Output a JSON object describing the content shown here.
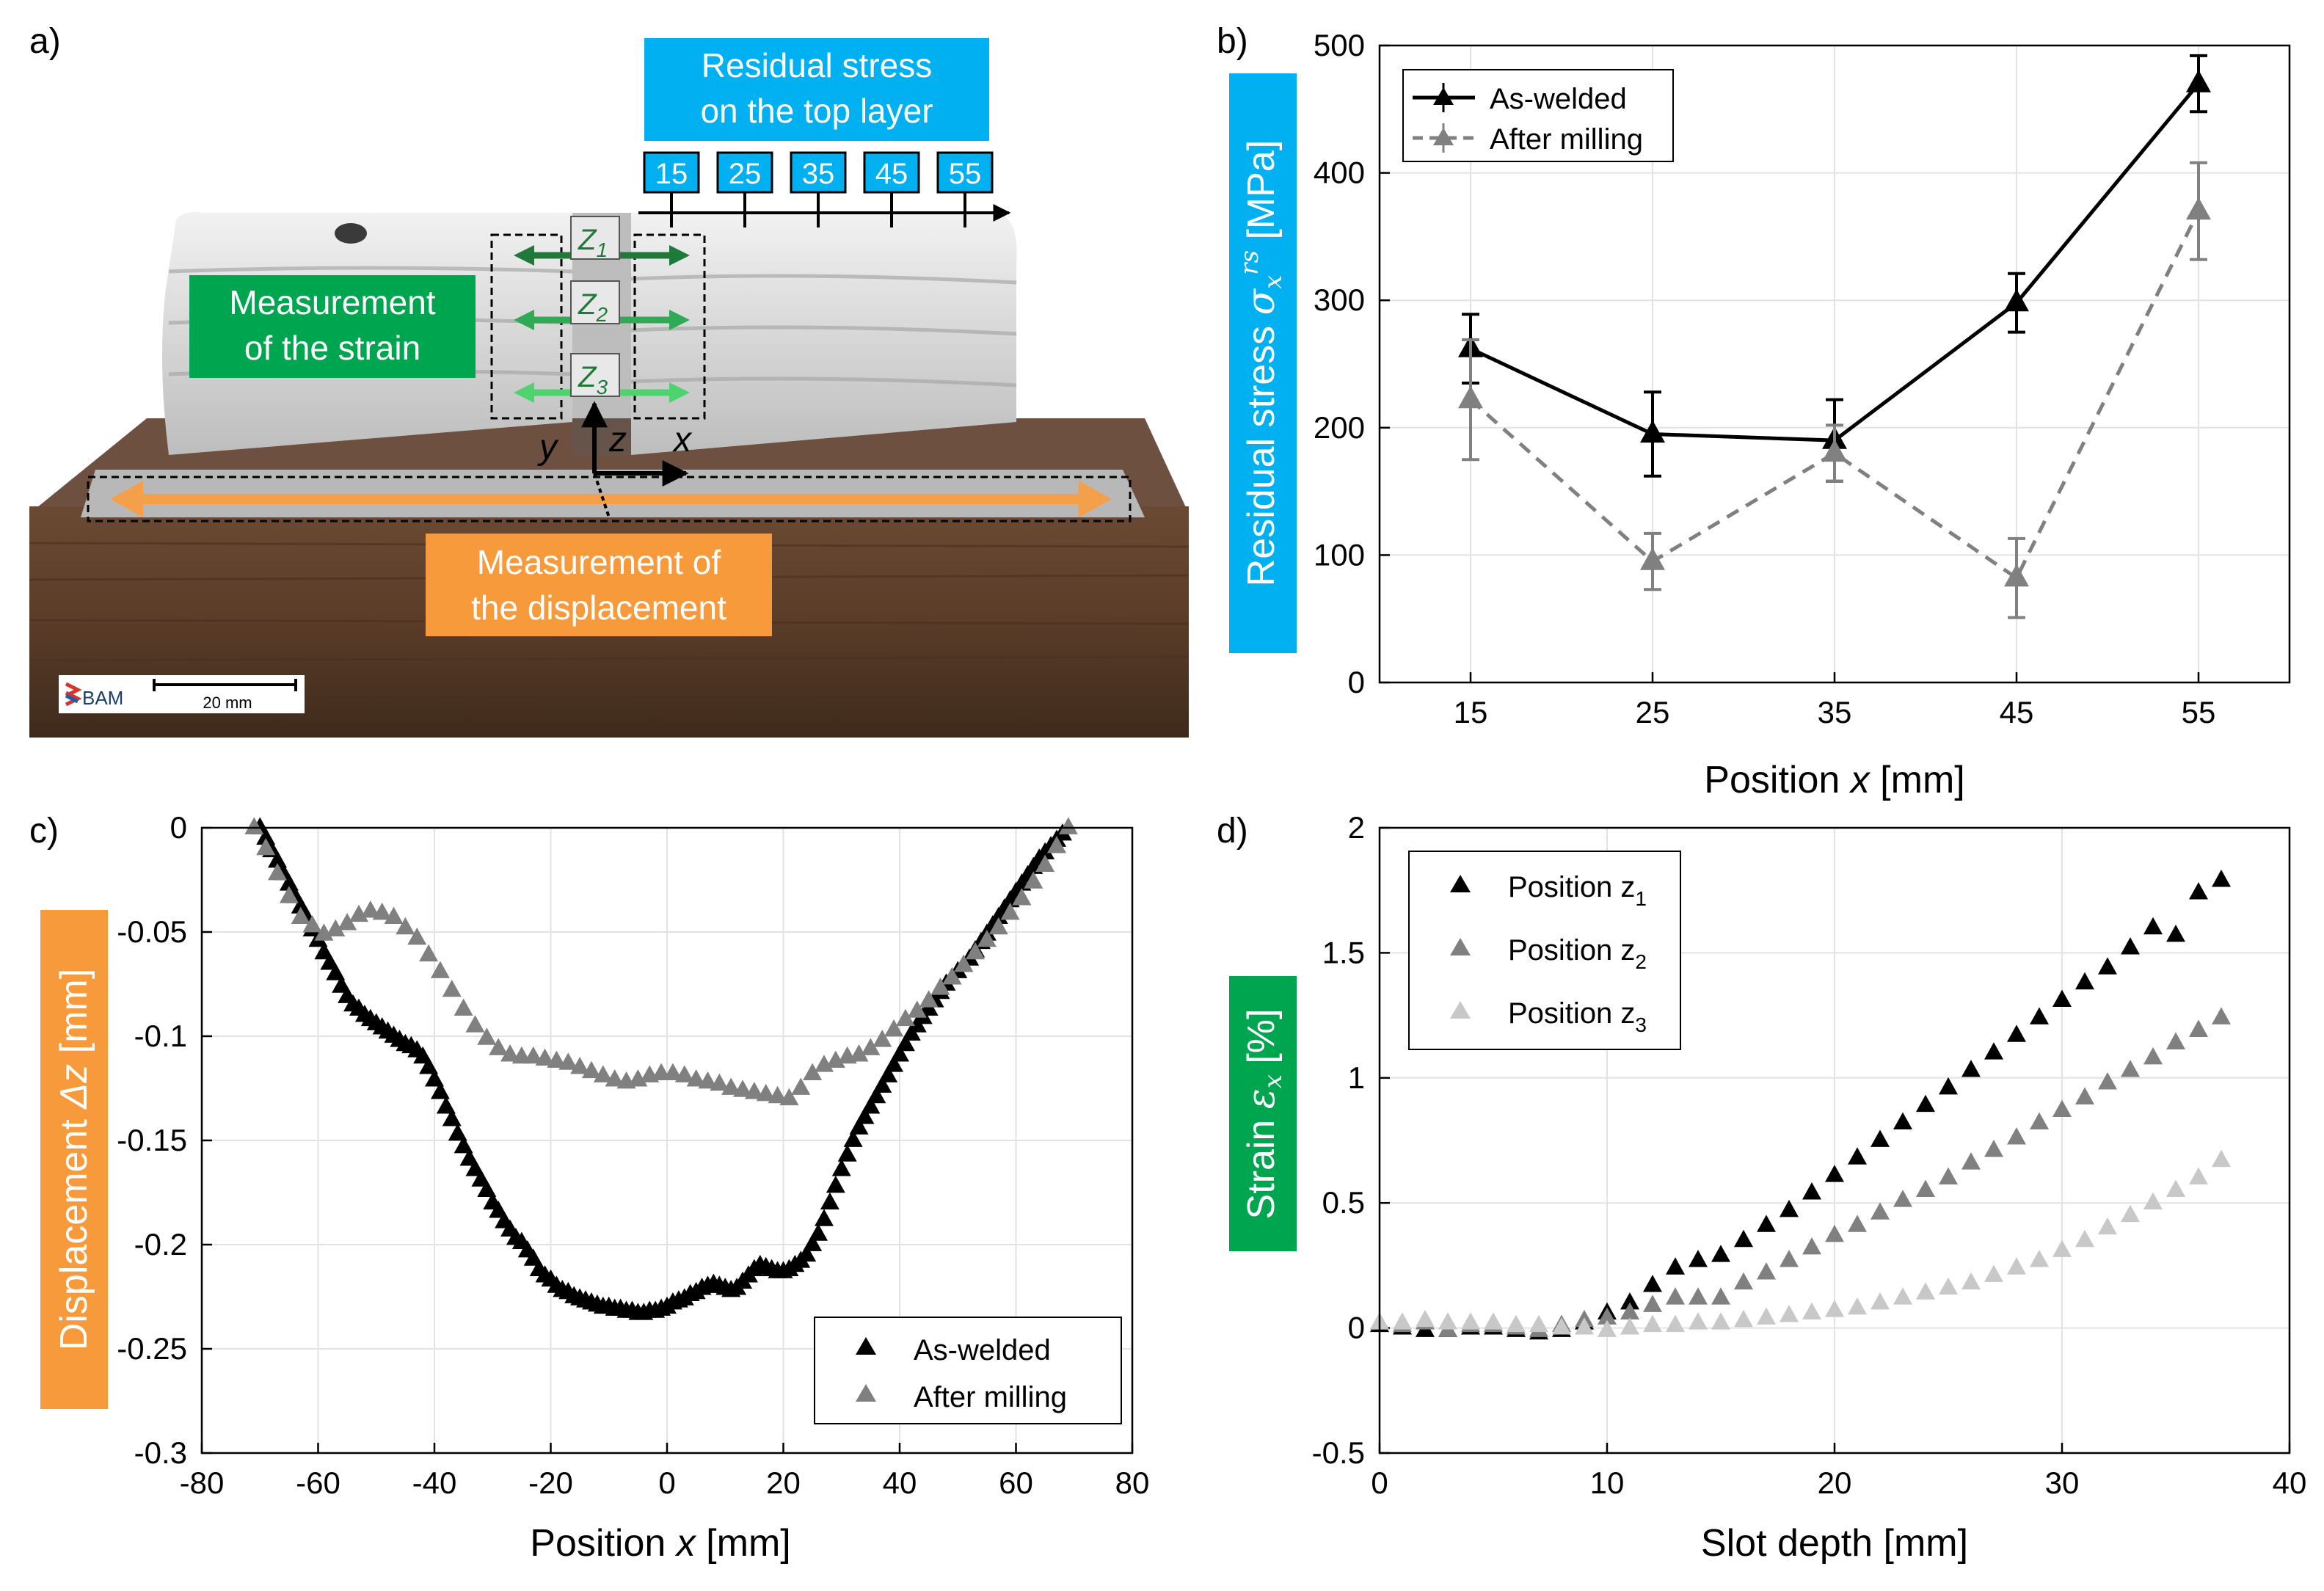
{
  "panels": {
    "a": "a)",
    "b": "b)",
    "c": "c)",
    "d": "d)"
  },
  "colors": {
    "as_welded": "#000000",
    "after_milling": "#808080",
    "z1": "#000000",
    "z2": "#808080",
    "z3": "#c8c8c8",
    "cyan_box": "#00b0f0",
    "green_box": "#00a550",
    "orange_box": "#f79a3c",
    "arrow_orange": "#f4a04a",
    "arrow_green_dark": "#1f7a3a",
    "arrow_green_mid": "#2faa55",
    "arrow_green_light": "#4fd36e",
    "wood": "#5a3c28",
    "metal": "#d9d9d9"
  },
  "photo": {
    "residual_title_line1": "Residual stress",
    "residual_title_line2": "on the top layer",
    "positions": [
      "15",
      "25",
      "35",
      "45",
      "55"
    ],
    "strain_label_line1": "Measurement",
    "strain_label_line2": "of the strain",
    "disp_label_line1": "Measurement of",
    "disp_label_line2": "the displacement",
    "z_labels": [
      "Z",
      "Z",
      "Z"
    ],
    "z_subs": [
      "1",
      "2",
      "3"
    ],
    "axis_y": "y",
    "axis_z": "z",
    "axis_x": "x",
    "scale_logo": "BAM",
    "scale_text": "20 mm"
  },
  "chart_data": [
    {
      "id": "b",
      "type": "line",
      "ylabel_prefix": "Residual stress ",
      "ylabel_symbol": "σ",
      "ylabel_sub": "x",
      "ylabel_sup": "rs",
      "ylabel_unit": " [MPa]",
      "xlabel_prefix": "Position ",
      "xlabel_var": "x",
      "xlabel_unit": " [mm]",
      "xlim": [
        10,
        60
      ],
      "ylim": [
        0,
        500
      ],
      "xticks": [
        15,
        25,
        35,
        45,
        55
      ],
      "yticks": [
        0,
        100,
        200,
        300,
        400,
        500
      ],
      "grid": true,
      "legend": "top-left",
      "series": [
        {
          "name": "As-welded",
          "style": "solid",
          "color": "#000000",
          "x": [
            15,
            25,
            35,
            45,
            55
          ],
          "y": [
            262,
            195,
            190,
            298,
            470
          ],
          "err": [
            27,
            33,
            32,
            23,
            22
          ]
        },
        {
          "name": "After milling",
          "style": "dashed",
          "color": "#808080",
          "x": [
            15,
            25,
            35,
            45,
            55
          ],
          "y": [
            222,
            95,
            180,
            82,
            370
          ],
          "err": [
            47,
            22,
            22,
            31,
            38
          ]
        }
      ]
    },
    {
      "id": "c",
      "type": "scatter",
      "ylabel_prefix": "Displacement ",
      "ylabel_var": "Δz",
      "ylabel_unit": " [mm]",
      "xlabel_prefix": "Position ",
      "xlabel_var": "x",
      "xlabel_unit": " [mm]",
      "xlim": [
        -80,
        80
      ],
      "ylim": [
        -0.3,
        0
      ],
      "xticks": [
        -80,
        -60,
        -40,
        -20,
        0,
        20,
        40,
        60,
        80
      ],
      "yticks": [
        0,
        -0.05,
        -0.1,
        -0.15,
        -0.2,
        -0.25,
        -0.3
      ],
      "grid": true,
      "legend": "bottom-right",
      "series": [
        {
          "name": "As-welded",
          "color": "#000000",
          "x": [
            -70,
            -69,
            -68,
            -67,
            -66,
            -65,
            -64,
            -63,
            -62,
            -61,
            -60,
            -59,
            -58,
            -57,
            -56,
            -55,
            -54,
            -53,
            -52,
            -51,
            -50,
            -49,
            -48,
            -47,
            -46,
            -45,
            -44,
            -43,
            -42,
            -41,
            -40,
            -39,
            -38,
            -37,
            -36,
            -35,
            -34,
            -33,
            -32,
            -31,
            -30,
            -29,
            -28,
            -27,
            -26,
            -25,
            -24,
            -23,
            -22,
            -21,
            -20,
            -19,
            -18,
            -17,
            -16,
            -15,
            -14,
            -13,
            -12,
            -11,
            -10,
            -9,
            -8,
            -7,
            -6,
            -5,
            -4,
            -3,
            -2,
            -1,
            0,
            1,
            2,
            3,
            4,
            5,
            6,
            7,
            8,
            9,
            10,
            11,
            12,
            13,
            14,
            15,
            16,
            17,
            18,
            19,
            20,
            21,
            22,
            23,
            24,
            25,
            26,
            27,
            28,
            29,
            30,
            31,
            32,
            33,
            34,
            35,
            36,
            37,
            38,
            39,
            40,
            41,
            42,
            43,
            44,
            45,
            46,
            47,
            48,
            49,
            50,
            51,
            52,
            53,
            54,
            55,
            56,
            57,
            58,
            59,
            60,
            61,
            62,
            63,
            64,
            65,
            66,
            67,
            68
          ],
          "y": [
            0,
            -0.005,
            -0.011,
            -0.016,
            -0.022,
            -0.027,
            -0.033,
            -0.038,
            -0.043,
            -0.049,
            -0.054,
            -0.06,
            -0.065,
            -0.07,
            -0.076,
            -0.081,
            -0.085,
            -0.087,
            -0.09,
            -0.092,
            -0.094,
            -0.096,
            -0.098,
            -0.1,
            -0.102,
            -0.104,
            -0.105,
            -0.107,
            -0.11,
            -0.115,
            -0.121,
            -0.127,
            -0.134,
            -0.14,
            -0.147,
            -0.153,
            -0.159,
            -0.164,
            -0.169,
            -0.174,
            -0.18,
            -0.184,
            -0.189,
            -0.193,
            -0.197,
            -0.199,
            -0.203,
            -0.207,
            -0.212,
            -0.215,
            -0.217,
            -0.22,
            -0.222,
            -0.223,
            -0.225,
            -0.226,
            -0.227,
            -0.228,
            -0.229,
            -0.23,
            -0.23,
            -0.231,
            -0.231,
            -0.232,
            -0.232,
            -0.233,
            -0.233,
            -0.232,
            -0.232,
            -0.231,
            -0.23,
            -0.228,
            -0.227,
            -0.226,
            -0.224,
            -0.223,
            -0.221,
            -0.22,
            -0.219,
            -0.22,
            -0.221,
            -0.222,
            -0.221,
            -0.218,
            -0.215,
            -0.212,
            -0.21,
            -0.211,
            -0.212,
            -0.213,
            -0.213,
            -0.212,
            -0.21,
            -0.208,
            -0.205,
            -0.2,
            -0.195,
            -0.188,
            -0.18,
            -0.172,
            -0.164,
            -0.157,
            -0.15,
            -0.144,
            -0.139,
            -0.134,
            -0.129,
            -0.124,
            -0.119,
            -0.114,
            -0.109,
            -0.104,
            -0.099,
            -0.095,
            -0.091,
            -0.087,
            -0.083,
            -0.079,
            -0.075,
            -0.072,
            -0.069,
            -0.066,
            -0.063,
            -0.059,
            -0.055,
            -0.051,
            -0.047,
            -0.043,
            -0.039,
            -0.035,
            -0.031,
            -0.027,
            -0.023,
            -0.019,
            -0.015,
            -0.012,
            -0.009,
            -0.006,
            -0.003
          ]
        },
        {
          "name": "After milling",
          "color": "#808080",
          "x": [
            -71,
            -69,
            -67,
            -65,
            -63,
            -61,
            -59,
            -57,
            -55,
            -53,
            -51,
            -49,
            -47,
            -45,
            -43,
            -41,
            -39,
            -37,
            -35,
            -33,
            -31,
            -29,
            -27,
            -25,
            -23,
            -21,
            -19,
            -17,
            -15,
            -13,
            -11,
            -9,
            -7,
            -5,
            -3,
            -1,
            1,
            3,
            5,
            7,
            9,
            11,
            13,
            15,
            17,
            19,
            21,
            23,
            25,
            27,
            29,
            31,
            33,
            35,
            37,
            39,
            41,
            43,
            45,
            47,
            49,
            51,
            53,
            55,
            57,
            59,
            61,
            63,
            65,
            67,
            69
          ],
          "y": [
            0,
            -0.01,
            -0.022,
            -0.033,
            -0.043,
            -0.047,
            -0.051,
            -0.049,
            -0.046,
            -0.042,
            -0.04,
            -0.041,
            -0.043,
            -0.048,
            -0.053,
            -0.061,
            -0.069,
            -0.078,
            -0.087,
            -0.095,
            -0.101,
            -0.106,
            -0.109,
            -0.11,
            -0.11,
            -0.111,
            -0.112,
            -0.113,
            -0.115,
            -0.117,
            -0.119,
            -0.121,
            -0.122,
            -0.121,
            -0.119,
            -0.118,
            -0.118,
            -0.119,
            -0.121,
            -0.122,
            -0.123,
            -0.125,
            -0.126,
            -0.127,
            -0.128,
            -0.129,
            -0.13,
            -0.125,
            -0.118,
            -0.114,
            -0.112,
            -0.11,
            -0.109,
            -0.106,
            -0.102,
            -0.097,
            -0.092,
            -0.088,
            -0.083,
            -0.077,
            -0.072,
            -0.066,
            -0.06,
            -0.054,
            -0.048,
            -0.041,
            -0.034,
            -0.026,
            -0.018,
            -0.009,
            0
          ]
        }
      ]
    },
    {
      "id": "d",
      "type": "scatter",
      "ylabel_prefix": "Strain ",
      "ylabel_symbol": "ε",
      "ylabel_sub": "x",
      "ylabel_unit": " [%]",
      "xlabel": "Slot depth [mm]",
      "xlim": [
        0,
        40
      ],
      "ylim": [
        -0.5,
        2
      ],
      "xticks": [
        0,
        10,
        20,
        30,
        40
      ],
      "yticks": [
        -0.5,
        0,
        0.5,
        1,
        1.5,
        2
      ],
      "grid": true,
      "legend": "top-left",
      "series": [
        {
          "name": "Position z",
          "sub": "1",
          "color": "#000000",
          "x": [
            0,
            1,
            2,
            3,
            4,
            5,
            6,
            7,
            8,
            9,
            10,
            11,
            12,
            13,
            14,
            15,
            16,
            17,
            18,
            19,
            20,
            21,
            22,
            23,
            24,
            25,
            26,
            27,
            28,
            29,
            30,
            31,
            32,
            33,
            34,
            35,
            36,
            37
          ],
          "y": [
            0.01,
            0.0,
            -0.01,
            -0.01,
            0.0,
            0.0,
            -0.01,
            -0.02,
            -0.01,
            0.02,
            0.06,
            0.1,
            0.17,
            0.24,
            0.27,
            0.29,
            0.35,
            0.41,
            0.47,
            0.54,
            0.61,
            0.68,
            0.75,
            0.82,
            0.89,
            0.96,
            1.03,
            1.1,
            1.17,
            1.24,
            1.31,
            1.38,
            1.44,
            1.52,
            1.6,
            1.57,
            1.74,
            1.79
          ]
        },
        {
          "name": "Position z",
          "sub": "2",
          "color": "#808080",
          "x": [
            0,
            1,
            2,
            3,
            4,
            5,
            6,
            7,
            8,
            9,
            10,
            11,
            12,
            13,
            14,
            15,
            16,
            17,
            18,
            19,
            20,
            21,
            22,
            23,
            24,
            25,
            26,
            27,
            28,
            29,
            30,
            31,
            32,
            33,
            34,
            35,
            36,
            37
          ],
          "y": [
            0.02,
            0.01,
            0.02,
            -0.01,
            0.01,
            0.01,
            0.0,
            -0.01,
            0.01,
            0.03,
            0.04,
            0.06,
            0.09,
            0.12,
            0.12,
            0.12,
            0.18,
            0.22,
            0.27,
            0.32,
            0.37,
            0.41,
            0.46,
            0.51,
            0.55,
            0.6,
            0.66,
            0.71,
            0.76,
            0.82,
            0.87,
            0.92,
            0.98,
            1.03,
            1.08,
            1.14,
            1.19,
            1.24
          ]
        },
        {
          "name": "Position z",
          "sub": "3",
          "color": "#c8c8c8",
          "x": [
            0,
            1,
            2,
            3,
            4,
            5,
            6,
            7,
            8,
            9,
            10,
            11,
            12,
            13,
            14,
            15,
            16,
            17,
            18,
            19,
            20,
            21,
            22,
            23,
            24,
            25,
            26,
            27,
            28,
            29,
            30,
            31,
            32,
            33,
            34,
            35,
            36,
            37
          ],
          "y": [
            0.02,
            0.02,
            0.03,
            0.02,
            0.02,
            0.02,
            0.01,
            0.01,
            0.0,
            0.0,
            -0.01,
            0.0,
            0.01,
            0.01,
            0.02,
            0.02,
            0.03,
            0.04,
            0.05,
            0.06,
            0.07,
            0.08,
            0.1,
            0.12,
            0.14,
            0.16,
            0.18,
            0.21,
            0.24,
            0.27,
            0.31,
            0.35,
            0.4,
            0.45,
            0.5,
            0.55,
            0.6,
            0.67
          ]
        }
      ]
    }
  ]
}
